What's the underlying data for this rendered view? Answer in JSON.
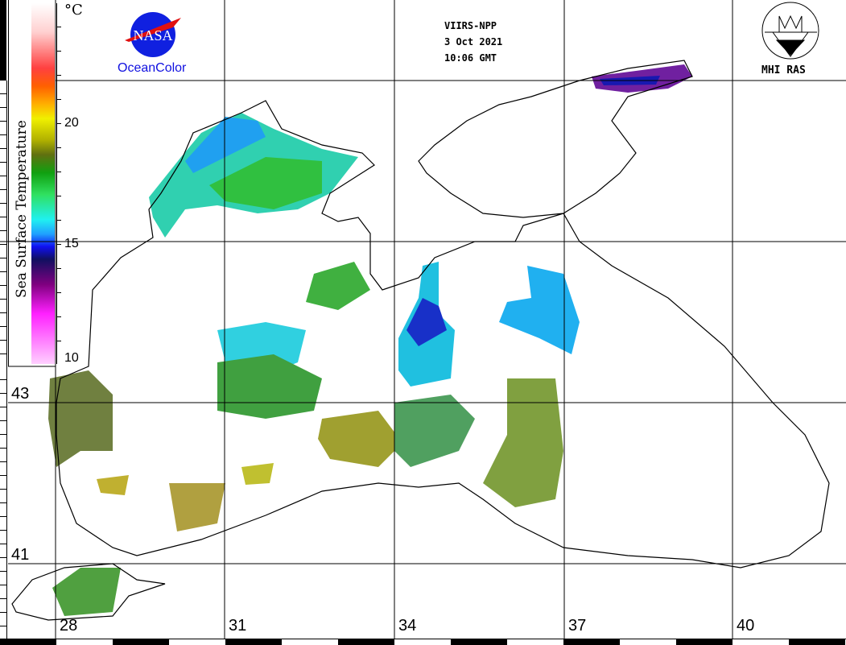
{
  "header": {
    "sensor": "VIIRS-NPP",
    "date": "3 Oct 2021",
    "time": "10:06 GMT"
  },
  "logos": {
    "nasa_text": "NASA",
    "oceancolor": "OceanColor",
    "mhi": "MHI RAS"
  },
  "colorbar": {
    "title": "Sea Surface Temperature",
    "unit": "°C",
    "ticks": [
      "20",
      "15",
      "10"
    ],
    "range": [
      10,
      25
    ]
  },
  "axes": {
    "lat_labels": [
      "43",
      "41"
    ],
    "lon_labels": [
      "28",
      "31",
      "34",
      "37",
      "40"
    ]
  },
  "colors": {
    "water_cold": "#1030d0",
    "water_mid": "#20e0e0",
    "water_warm": "#20a020",
    "water_hot": "#a0a030",
    "coast": "#000000"
  }
}
